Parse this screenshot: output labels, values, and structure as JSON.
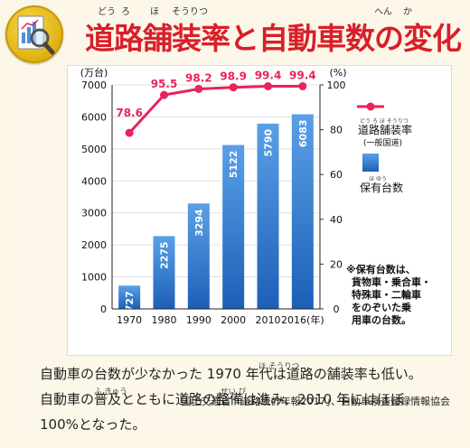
{
  "title": {
    "text": "道路舗装率と自動車数の変化",
    "ruby": [
      "どう",
      "ろ",
      "ほ",
      "そうりつ",
      "へん",
      "か"
    ]
  },
  "chart_data": {
    "type": "bar+line",
    "categories": [
      "1970",
      "1980",
      "1990",
      "2000",
      "2010",
      "2016(年)"
    ],
    "bar_series": {
      "name": "保有台数",
      "name_ruby": "ほ ゆう",
      "values": [
        727,
        2275,
        3294,
        5122,
        5790,
        6083
      ],
      "unit": "(万台)",
      "ylim": [
        0,
        7000
      ],
      "ticks": [
        "0",
        "1000",
        "2000",
        "3000",
        "4000",
        "5000",
        "6000",
        "7000"
      ]
    },
    "line_series": {
      "name": "道路舗装率",
      "name_ruby": "どう ろ ほ そうりつ",
      "subname": "(一般国道)",
      "subname_ruby": "いっ ぱん こく どう",
      "values": [
        78.6,
        95.5,
        98.2,
        98.9,
        99.4,
        99.4
      ],
      "unit": "(%)",
      "ylim": [
        0,
        100
      ],
      "ticks": [
        "0",
        "20",
        "40",
        "60",
        "80",
        "100"
      ]
    },
    "note": [
      "※保有台数は、",
      "貨物車・乗合車・",
      "特殊車・二輪車",
      "をのぞいた乗",
      "用車の台数。"
    ],
    "colors": {
      "bar_top": "#5aa0e6",
      "bar_bottom": "#1d5fb8",
      "line": "#e8245a",
      "line_label": "#e8245a",
      "title": "#d81f2a"
    }
  },
  "source": "国土交通省「道路統計年報2017」、自動車検査登録情報協会",
  "caption": {
    "line1": "自動車の台数が少なかった 1970 年代は道路の舗装率も低い。",
    "line2": "自動車の普及とともに道路の整備は進み、2010 年にはほぼ",
    "line3": "100%となった。",
    "ruby_line1": "ほ そうりつ",
    "ruby_line2a": "ふ きゅう",
    "ruby_line2b": "せい び"
  }
}
